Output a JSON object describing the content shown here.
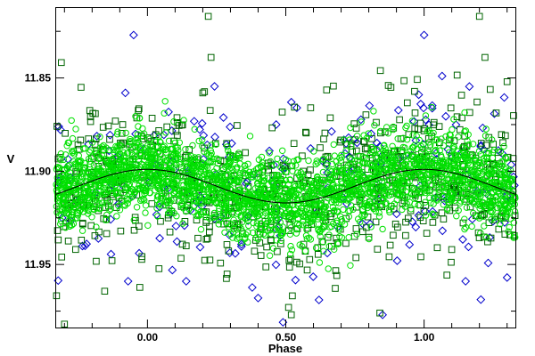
{
  "chart_data": {
    "type": "scatter",
    "xlabel": "Phase",
    "ylabel": "V",
    "xlim": [
      -0.33,
      1.33
    ],
    "ylim": [
      11.9838,
      11.8125
    ],
    "y_inverted": true,
    "x_ticks": [
      0.0,
      0.5,
      1.0
    ],
    "x_tick_labels": [
      "0.00",
      "0.50",
      "1.00"
    ],
    "y_ticks": [
      11.85,
      11.9,
      11.95
    ],
    "y_tick_labels": [
      "11.85",
      "11.90",
      "11.95"
    ],
    "grid": false,
    "legend": "none",
    "model_curve": {
      "mean": 11.908,
      "amplitude": 0.009,
      "max_phase": 0.0,
      "period": 1.0,
      "color": "#000000"
    },
    "series": [
      {
        "marker": "circle",
        "color": "#00e000",
        "approx_count": 2600,
        "center": 11.908,
        "spread": 0.011,
        "note_points_from": "model_curve"
      },
      {
        "marker": "square",
        "color": "#006400",
        "approx_count": 700,
        "center": 11.908,
        "spread": 0.02
      },
      {
        "marker": "diamond",
        "color": "#0000cc",
        "approx_count": 220,
        "center": 11.908,
        "spread": 0.022
      }
    ],
    "outliers": {
      "diamond": [
        [
          -0.05,
          11.827
        ],
        [
          1.0,
          11.827
        ],
        [
          -0.08,
          11.858
        ],
        [
          -0.22,
          11.939
        ],
        [
          0.09,
          11.953
        ],
        [
          0.14,
          11.959
        ],
        [
          0.49,
          11.981
        ],
        [
          0.52,
          11.863
        ],
        [
          0.54,
          11.866
        ],
        [
          0.62,
          11.969
        ],
        [
          -0.07,
          11.959
        ],
        [
          1.15,
          11.959
        ],
        [
          1.3,
          11.957
        ],
        [
          0.4,
          11.968
        ],
        [
          0.85,
          11.977
        ],
        [
          -0.03,
          11.944
        ]
      ],
      "square": [
        [
          -0.3,
          11.982
        ],
        [
          0.22,
          11.817
        ],
        [
          0.23,
          11.839
        ],
        [
          0.2,
          11.858
        ],
        [
          1.2,
          11.817
        ],
        [
          1.22,
          11.839
        ],
        [
          1.3,
          11.852
        ],
        [
          0.51,
          11.973
        ],
        [
          0.52,
          11.977
        ],
        [
          0.84,
          11.976
        ],
        [
          0.88,
          11.855
        ],
        [
          0.59,
          11.866
        ],
        [
          -0.24,
          11.855
        ],
        [
          0.14,
          11.94
        ],
        [
          1.1,
          11.942
        ],
        [
          -0.31,
          11.946
        ]
      ]
    }
  }
}
